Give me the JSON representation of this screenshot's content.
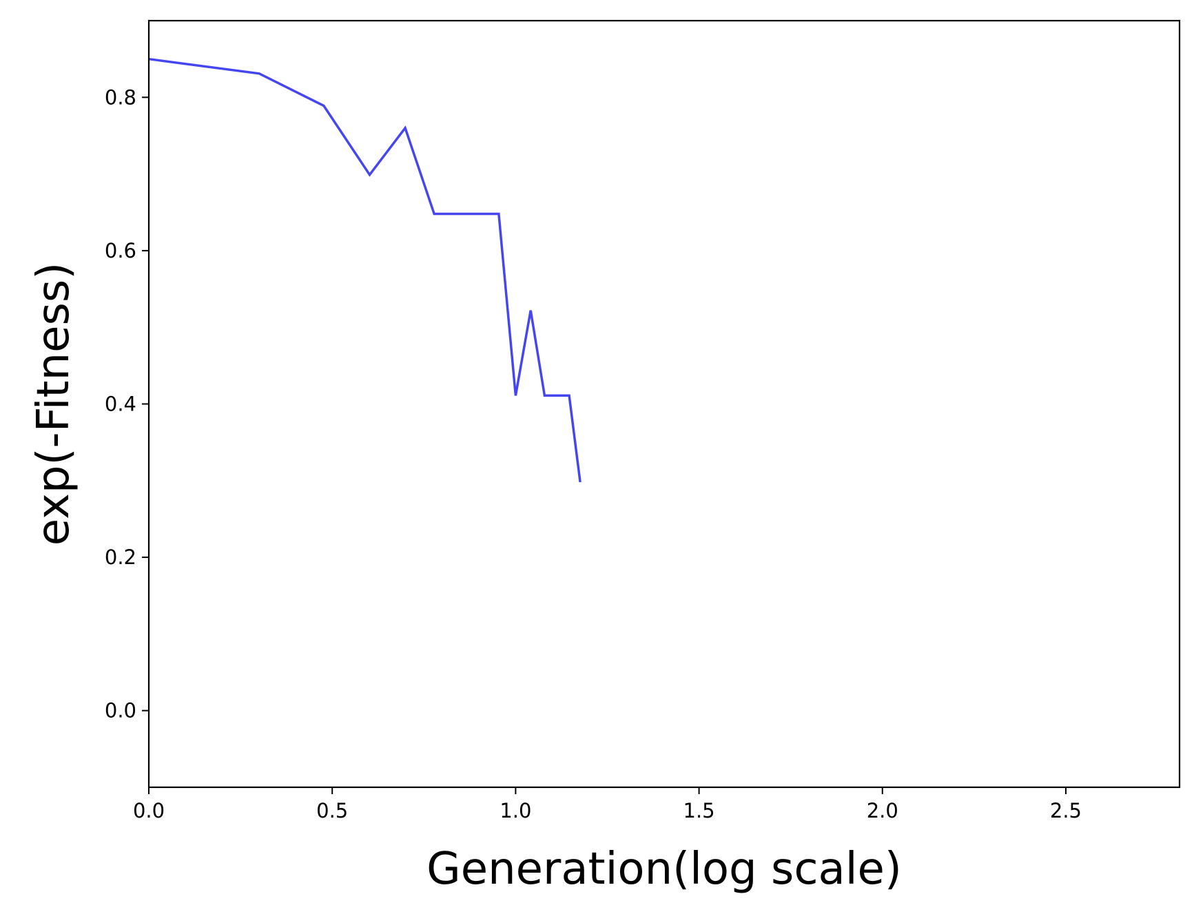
{
  "chart_data": {
    "type": "line",
    "xlabel": "Generation(log scale)",
    "ylabel": "exp(-Fitness)",
    "xlim": [
      0.0,
      2.81
    ],
    "ylim": [
      -0.1,
      0.9
    ],
    "x_ticks": [
      0.0,
      0.5,
      1.0,
      1.5,
      2.0,
      2.5
    ],
    "x_tick_labels": [
      "0.0",
      "0.5",
      "1.0",
      "1.5",
      "2.0",
      "2.5"
    ],
    "y_ticks": [
      0.0,
      0.2,
      0.4,
      0.6,
      0.8
    ],
    "y_tick_labels": [
      "0.0",
      "0.2",
      "0.4",
      "0.6",
      "0.8"
    ],
    "grid": false,
    "series": [
      {
        "color": "#4646f0",
        "points": [
          {
            "x": 0.0,
            "y": 0.85
          },
          {
            "x": 0.301,
            "y": 0.831
          },
          {
            "x": 0.477,
            "y": 0.789
          },
          {
            "x": 0.602,
            "y": 0.699
          },
          {
            "x": 0.699,
            "y": 0.76
          },
          {
            "x": 0.778,
            "y": 0.648
          },
          {
            "x": 0.954,
            "y": 0.648
          },
          {
            "x": 1.0,
            "y": 0.411
          },
          {
            "x": 1.041,
            "y": 0.522
          },
          {
            "x": 1.079,
            "y": 0.411
          },
          {
            "x": 1.146,
            "y": 0.411
          },
          {
            "x": 1.176,
            "y": 0.298
          }
        ]
      }
    ]
  }
}
